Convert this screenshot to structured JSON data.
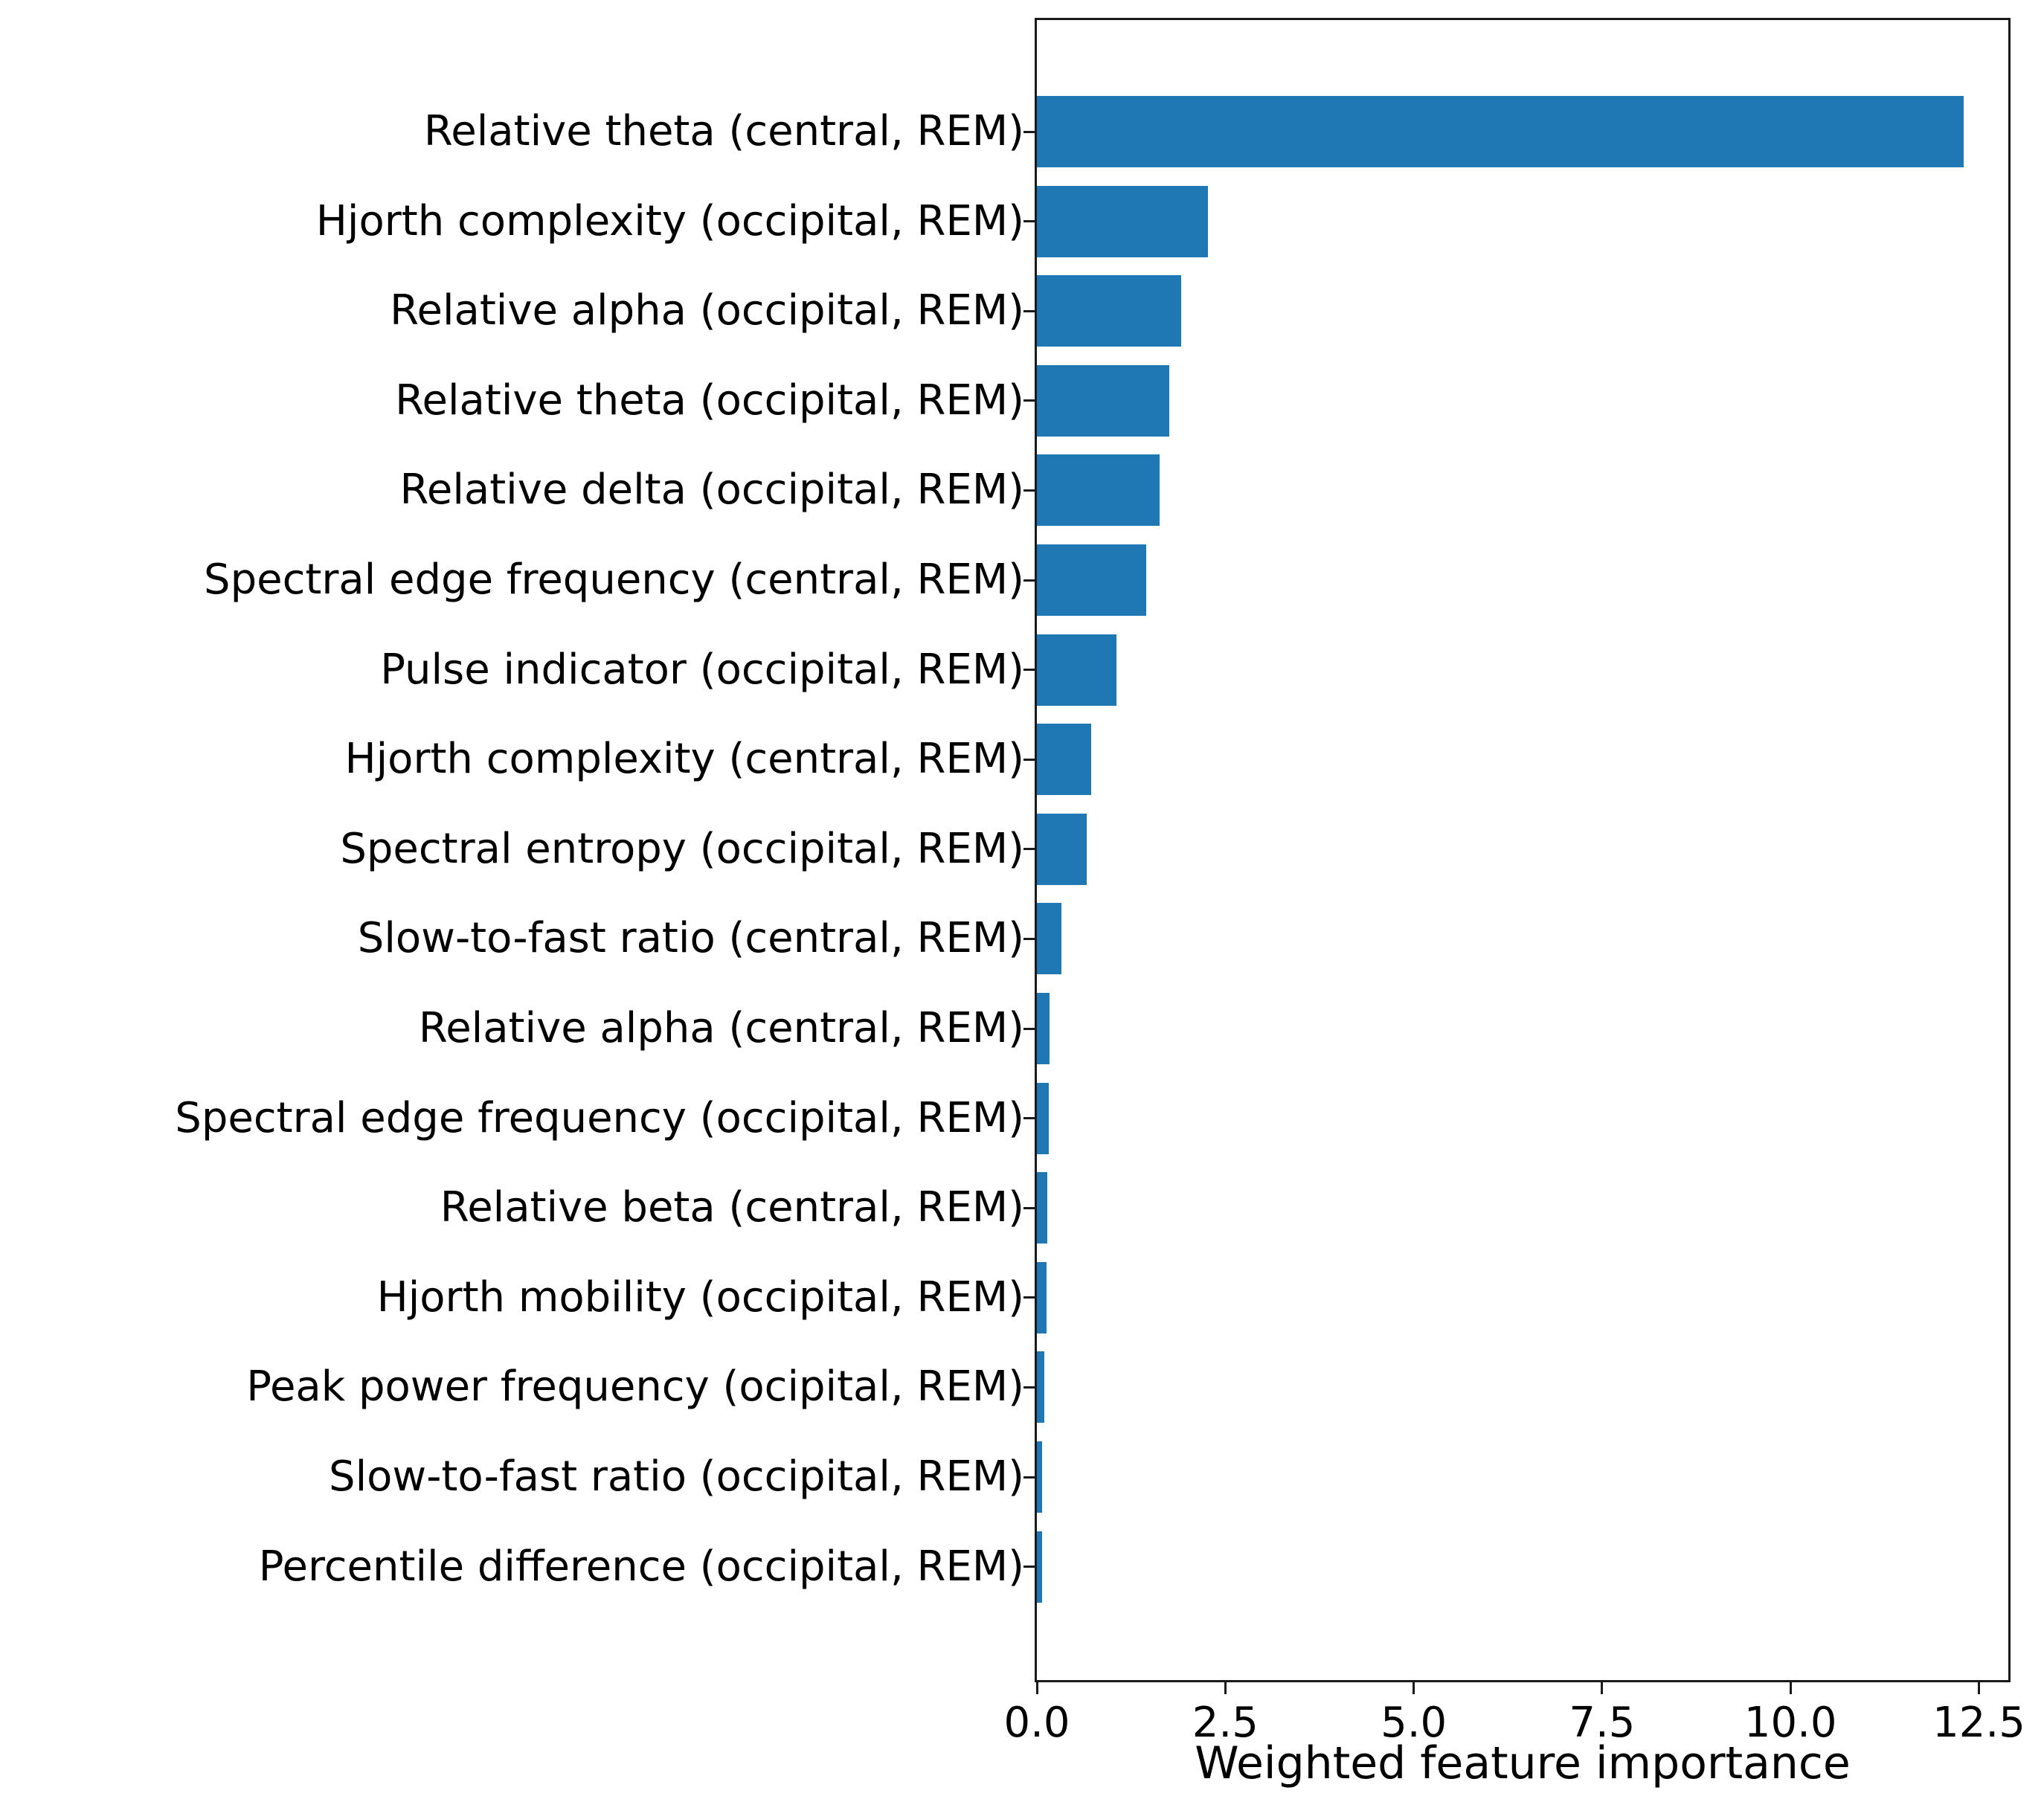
{
  "chart_data": {
    "type": "bar",
    "orientation": "horizontal",
    "title": "",
    "xlabel": "Weighted feature importance",
    "ylabel": "",
    "xlim": [
      0,
      12.89
    ],
    "xticks": [
      {
        "value": 0,
        "label": "0.0"
      },
      {
        "value": 2.5,
        "label": "2.5"
      },
      {
        "value": 5,
        "label": "5.0"
      },
      {
        "value": 7.5,
        "label": "7.5"
      },
      {
        "value": 10,
        "label": "10.0"
      },
      {
        "value": 12.5,
        "label": "12.5"
      }
    ],
    "grid": false,
    "legend": null,
    "bar_color": "#1f77b4",
    "categories": [
      "Relative theta (central, REM)",
      "Hjorth complexity (occipital, REM)",
      "Relative alpha (occipital, REM)",
      "Relative theta (occipital, REM)",
      "Relative delta (occipital, REM)",
      "Spectral edge frequency (central, REM)",
      "Pulse indicator (occipital, REM)",
      "Hjorth complexity (central, REM)",
      "Spectral entropy (occipital, REM)",
      "Slow-to-fast ratio (central, REM)",
      "Relative alpha (central, REM)",
      "Spectral edge frequency (occipital, REM)",
      "Relative beta (central, REM)",
      "Hjorth mobility (occipital, REM)",
      "Peak power frequency (ocipital, REM)",
      "Slow-to-fast ratio (occipital, REM)",
      "Percentile difference (occipital, REM)"
    ],
    "values": [
      12.3,
      2.27,
      1.91,
      1.76,
      1.63,
      1.45,
      1.06,
      0.72,
      0.66,
      0.33,
      0.17,
      0.16,
      0.14,
      0.13,
      0.1,
      0.07,
      0.07
    ]
  }
}
